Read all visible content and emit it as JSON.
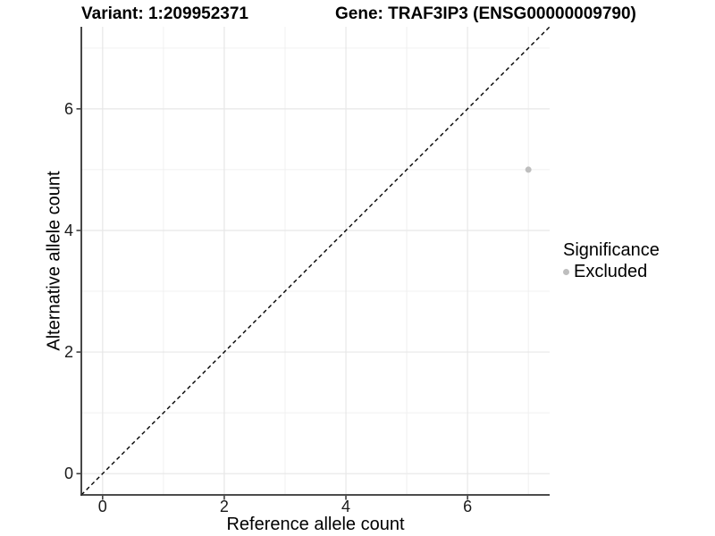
{
  "chart_data": {
    "type": "scatter",
    "title_left": "Variant: 1:209952371",
    "title_right": "Gene: TRAF3IP3 (ENSG00000009790)",
    "xlabel": "Reference allele count",
    "ylabel": "Alternative allele count",
    "xlim": [
      -0.35,
      7.35
    ],
    "ylim": [
      -0.35,
      7.35
    ],
    "x_ticks": [
      0,
      2,
      4,
      6
    ],
    "y_ticks": [
      0,
      2,
      4,
      6
    ],
    "x_minor": [
      1,
      3,
      5,
      7
    ],
    "y_minor": [
      1,
      3,
      5,
      7
    ],
    "grid": true,
    "identity_line": {
      "equation": "y = x",
      "style": "dashed",
      "color": "#000000"
    },
    "legend": {
      "position": "right",
      "title": "Significance",
      "items": [
        {
          "label": "Excluded",
          "color": "#bebebe"
        }
      ]
    },
    "series": [
      {
        "name": "Excluded",
        "color": "#bebebe",
        "points": [
          {
            "x": 7,
            "y": 5
          }
        ]
      }
    ]
  },
  "style": {
    "background": "#ffffff",
    "grid_major_color": "#e7e7e7",
    "grid_minor_color": "#f0f0f0",
    "axis_line_color": "#333333",
    "tick_color": "#333333",
    "tick_label_color": "#1a1a1a",
    "point_color": "#bebebe"
  }
}
